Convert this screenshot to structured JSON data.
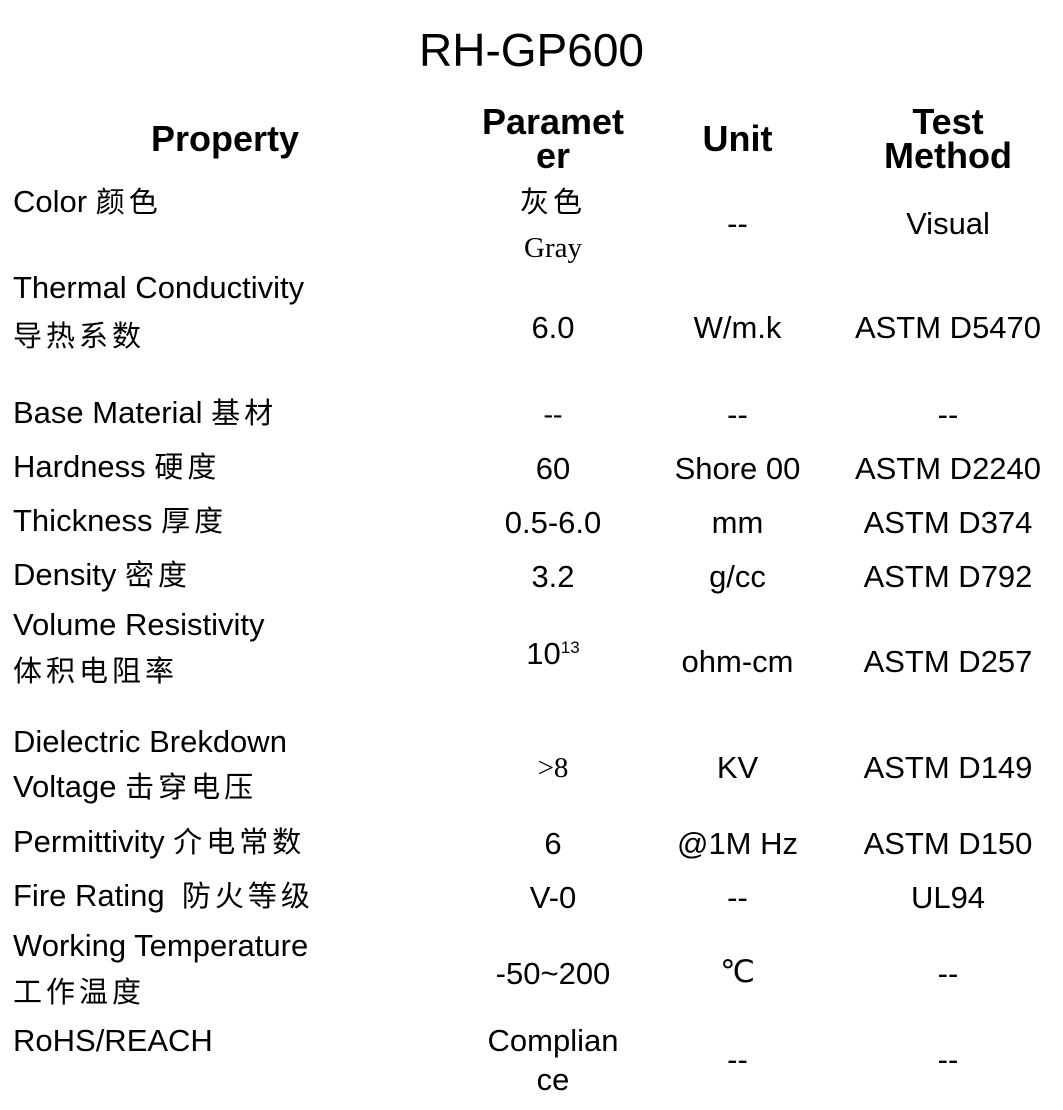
{
  "title": "RH-GP600",
  "headers": {
    "property": "Property",
    "parameter_1": "Paramet",
    "parameter_2": "er",
    "unit": "Unit",
    "test_1": "Test",
    "test_2": "Method"
  },
  "rows": [
    {
      "prop_en": "Color",
      "prop_cn": "颜色",
      "param_cn": "灰色",
      "param_en": "Gray",
      "unit": "--",
      "test": "Visual"
    },
    {
      "prop_en": "Thermal Conductivity",
      "prop_cn": "导热系数",
      "param": "6.0",
      "unit": "W/m.k",
      "test": "ASTM D5470"
    },
    {
      "prop_en": "Base Material",
      "prop_cn": "基材",
      "param": "--",
      "unit": "--",
      "test": "--"
    },
    {
      "prop_en": "Hardness",
      "prop_cn": "硬度",
      "param": "60",
      "unit": "Shore 00",
      "test": "ASTM D2240"
    },
    {
      "prop_en": "Thickness",
      "prop_cn": "厚度",
      "param": "0.5-6.0",
      "unit": "mm",
      "test": "ASTM D374"
    },
    {
      "prop_en": "Density",
      "prop_cn": "密度",
      "param": "3.2",
      "unit": "g/cc",
      "test": "ASTM D792"
    },
    {
      "prop_en": "Volume Resistivity",
      "prop_cn": "体积电阻率",
      "param_base": "10",
      "param_exp": "13",
      "unit": "ohm-cm",
      "test": "ASTM D257"
    },
    {
      "prop_en_1": "Dielectric Brekdown",
      "prop_en_2": "Voltage",
      "prop_cn": "击穿电压",
      "param": ">8",
      "unit": "KV",
      "test": "ASTM D149"
    },
    {
      "prop_en": "Permittivity",
      "prop_cn": "介电常数",
      "param": "6",
      "unit": "@1M Hz",
      "test": "ASTM D150"
    },
    {
      "prop_en": "Fire Rating",
      "prop_cn": "防火等级",
      "param": "V-0",
      "unit": "--",
      "test": "UL94"
    },
    {
      "prop_en": "Working Temperature",
      "prop_cn": "工作温度",
      "param": "-50~200",
      "unit": "℃",
      "test": "--"
    },
    {
      "prop_en": "RoHS/REACH",
      "param_1": "Complian",
      "param_2": "ce",
      "unit": "--",
      "test": "--"
    }
  ]
}
